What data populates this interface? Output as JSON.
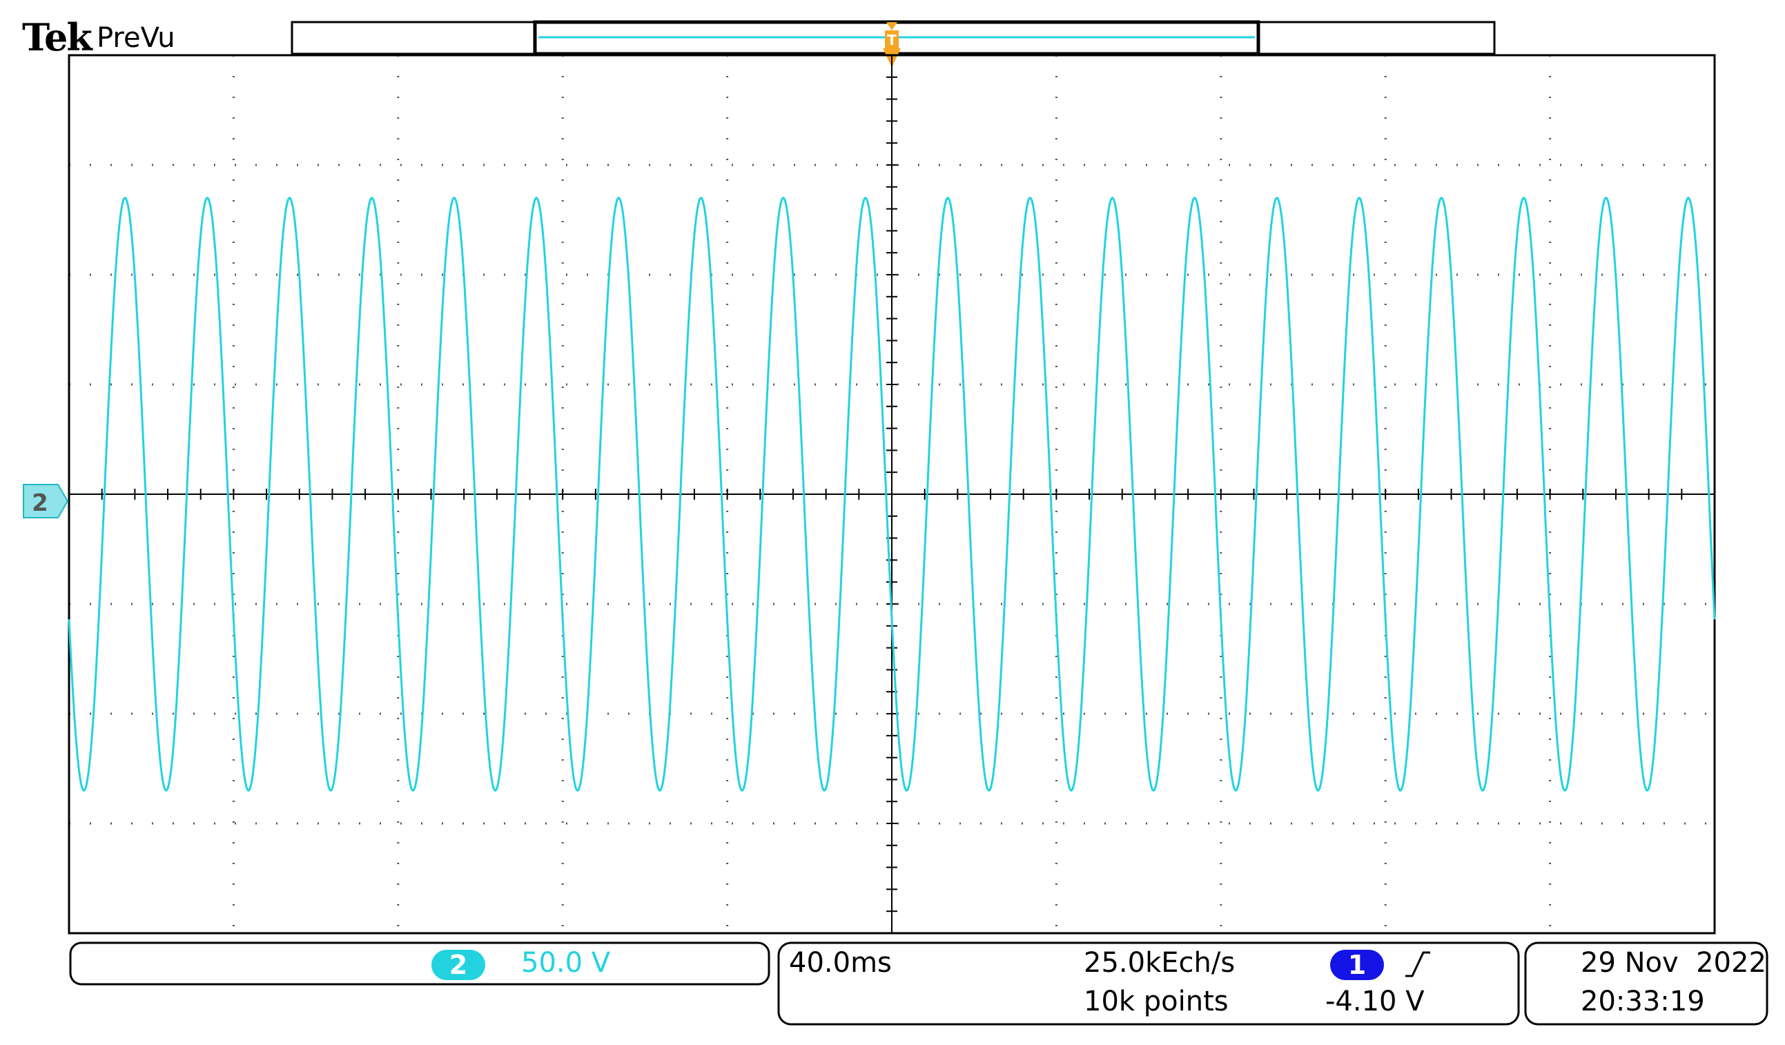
{
  "header": {
    "brand": "Tek",
    "mode": "PreVu"
  },
  "markers": {
    "trigger_position_marker": "T",
    "channel_ground_marker": "2"
  },
  "channel": {
    "number": "2",
    "scale": "50.0 V",
    "color": "#22d3df"
  },
  "timebase": {
    "scale": "40.0ms",
    "sample_rate": "25.0kEch/s",
    "record_length": "10k points"
  },
  "trigger": {
    "source": "1",
    "slope": "rising-edge-icon",
    "level": "-4.10 V",
    "source_color": "#1414e6",
    "marker_color": "#f5a623"
  },
  "datetime": {
    "date": "29 Nov  2022",
    "time": "20:33:19"
  },
  "waveform": {
    "frequency_hz": 50,
    "amplitude_divisions": 2.7,
    "offset_divisions": 0,
    "start_phase_deg": 205,
    "horizontal_divisions": 10,
    "vertical_divisions": 8
  }
}
